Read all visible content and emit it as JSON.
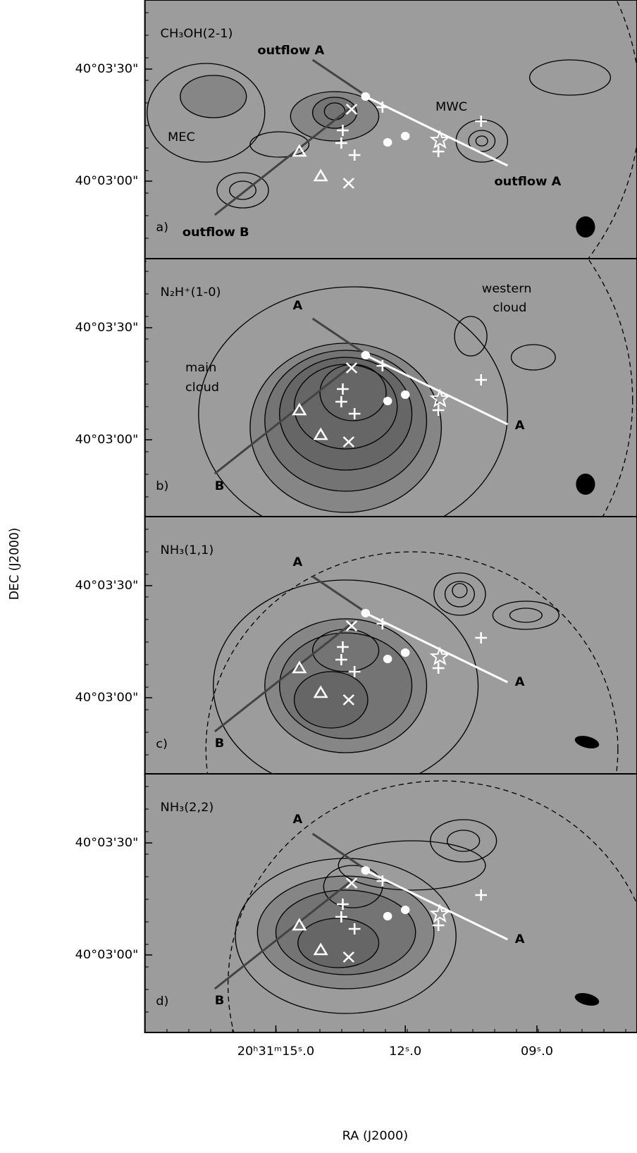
{
  "y_axis": {
    "title": "DEC (J2000)",
    "ticks": [
      "40°03'30\"",
      "40°03'00\""
    ]
  },
  "x_axis": {
    "title": "RA (J2000)",
    "ticks": [
      "20ʰ31ᵐ15ˢ.0",
      "12ˢ.0",
      "09ˢ.0"
    ]
  },
  "panels": [
    {
      "molecule": "CH₃OH(2-1)",
      "tag": "a)",
      "labels": [
        "outflow A",
        "outflow A",
        "outflow B",
        "MEC",
        "MWC"
      ]
    },
    {
      "molecule": "N₂H⁺(1-0)",
      "tag": "b)",
      "labels": [
        "A",
        "A",
        "B",
        "main",
        "cloud",
        "western",
        "cloud"
      ]
    },
    {
      "molecule": "NH₃(1,1)",
      "tag": "c)",
      "labels": [
        "A",
        "A",
        "B"
      ]
    },
    {
      "molecule": "NH₃(2,2)",
      "tag": "d)",
      "labels": [
        "A",
        "A",
        "B"
      ]
    }
  ]
}
